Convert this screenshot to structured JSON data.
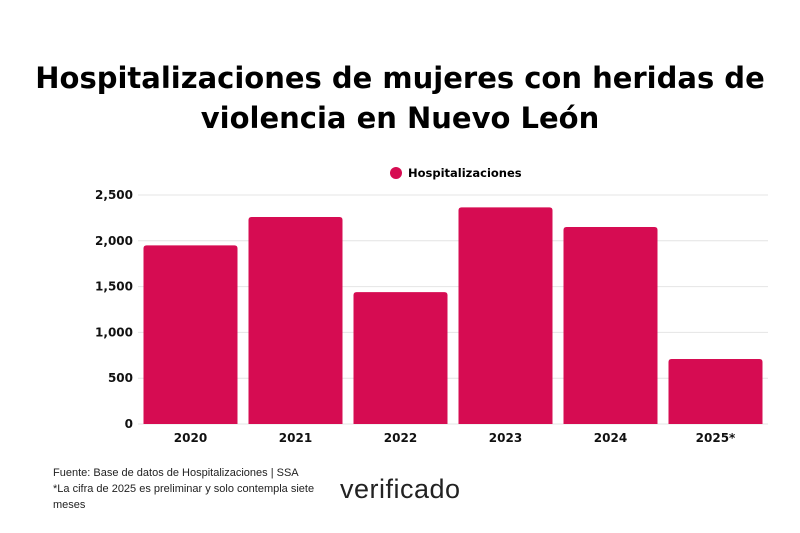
{
  "chart_data": {
    "type": "bar",
    "title": "Hospitalizaciones de mujeres con heridas de violencia en Nuevo León",
    "categories": [
      "2020",
      "2021",
      "2022",
      "2023",
      "2024",
      "2025*"
    ],
    "series": [
      {
        "name": "Hospitalizaciones",
        "values": [
          1950,
          2260,
          1440,
          2365,
          2150,
          710
        ],
        "color": "#d60c52"
      }
    ],
    "yticks": [
      "0",
      "500",
      "1,000",
      "1,500",
      "2,000",
      "2,500"
    ],
    "ylim": [
      0,
      2500
    ],
    "grid": true,
    "legend": "top"
  },
  "footer": {
    "source": "Fuente: Base de datos de Hospitalizaciones | SSA",
    "note": "*La cifra de 2025 es preliminar y solo contempla siete meses",
    "logo": "verificado"
  }
}
